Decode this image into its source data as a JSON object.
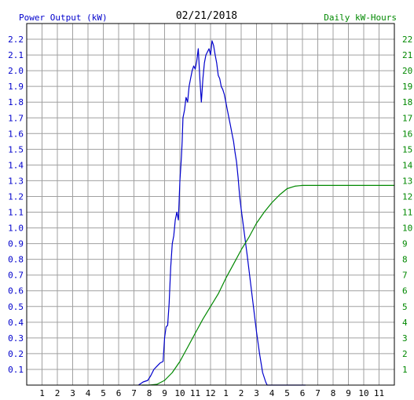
{
  "colors": {
    "power": "#0000cc",
    "energy": "#008800",
    "grid": "#a0a0a0",
    "axis_text": "#000000"
  },
  "chart_data": {
    "type": "line",
    "title": "02/21/2018",
    "left_label": "Power Output (kW)",
    "right_label": "Daily kW-Hours",
    "x_tick_labels": [
      "1",
      "2",
      "3",
      "4",
      "5",
      "6",
      "7",
      "8",
      "9",
      "10",
      "11",
      "12",
      "1",
      "2",
      "3",
      "4",
      "5",
      "6",
      "7",
      "8",
      "9",
      "10",
      "11"
    ],
    "xlim": [
      0,
      24
    ],
    "y_left": {
      "lim": [
        0,
        2.3
      ],
      "ticks": [
        "0.1",
        "0.2",
        "0.3",
        "0.4",
        "0.5",
        "0.6",
        "0.7",
        "0.8",
        "0.9",
        "1.0",
        "1.1",
        "1.2",
        "1.3",
        "1.4",
        "1.5",
        "1.6",
        "1.7",
        "1.8",
        "1.9",
        "2.0",
        "2.1",
        "2.2"
      ]
    },
    "y_right": {
      "lim": [
        0,
        23
      ],
      "ticks": [
        "1",
        "2",
        "3",
        "4",
        "5",
        "6",
        "7",
        "8",
        "9",
        "10",
        "11",
        "12",
        "13",
        "14",
        "15",
        "16",
        "17",
        "18",
        "19",
        "20",
        "21",
        "22"
      ]
    },
    "grid": true,
    "series": [
      {
        "name": "Power Output (kW)",
        "axis": "left",
        "color": "#0000cc",
        "x": [
          7.3,
          7.6,
          7.9,
          8.1,
          8.3,
          8.5,
          8.7,
          8.9,
          9.0,
          9.1,
          9.2,
          9.3,
          9.4,
          9.5,
          9.6,
          9.7,
          9.8,
          9.9,
          10.0,
          10.1,
          10.15,
          10.2,
          10.3,
          10.4,
          10.5,
          10.6,
          10.7,
          10.8,
          10.9,
          11.0,
          11.1,
          11.2,
          11.3,
          11.4,
          11.5,
          11.6,
          11.7,
          11.8,
          11.9,
          12.0,
          12.1,
          12.2,
          12.3,
          12.4,
          12.5,
          12.6,
          12.7,
          12.8,
          12.9,
          13.0,
          13.1,
          13.2,
          13.3,
          13.4,
          13.5,
          13.6,
          13.7,
          13.8,
          13.9,
          14.0,
          14.2,
          14.4,
          14.6,
          14.8,
          15.0,
          15.2,
          15.4,
          15.6,
          15.7,
          15.8,
          16.0,
          16.2,
          16.4,
          16.6,
          16.8,
          17.0,
          17.2,
          17.4,
          17.6,
          17.8,
          18.0,
          18.1,
          18.2
        ],
        "y": [
          0.0,
          0.02,
          0.03,
          0.06,
          0.1,
          0.12,
          0.14,
          0.15,
          0.3,
          0.37,
          0.38,
          0.52,
          0.75,
          0.9,
          0.95,
          1.05,
          1.1,
          1.05,
          1.3,
          1.45,
          1.55,
          1.7,
          1.75,
          1.83,
          1.8,
          1.9,
          1.95,
          2.0,
          2.03,
          2.01,
          2.06,
          2.14,
          1.95,
          1.8,
          1.95,
          2.05,
          2.1,
          2.12,
          2.14,
          2.1,
          2.19,
          2.16,
          2.1,
          2.05,
          1.97,
          1.95,
          1.9,
          1.88,
          1.85,
          1.8,
          1.75,
          1.7,
          1.65,
          1.6,
          1.55,
          1.48,
          1.42,
          1.32,
          1.2,
          1.12,
          0.97,
          0.82,
          0.66,
          0.5,
          0.34,
          0.2,
          0.08,
          0.02,
          0.0,
          0.0,
          0.0,
          0.0,
          0.0,
          0.0,
          0.0,
          0.0,
          0.0,
          0.0,
          0.0,
          0.0,
          0.0,
          0.0,
          0.0
        ]
      },
      {
        "name": "Daily kW-Hours",
        "axis": "right",
        "color": "#008800",
        "x": [
          7.5,
          8.0,
          8.5,
          9.0,
          9.5,
          10.0,
          10.5,
          11.0,
          11.5,
          12.0,
          12.5,
          13.0,
          13.5,
          14.0,
          14.5,
          15.0,
          15.5,
          16.0,
          16.5,
          17.0,
          17.5,
          18.0,
          18.5,
          19.0,
          20.0,
          21.0,
          22.0,
          23.0,
          24.0
        ],
        "y": [
          0.0,
          0.0,
          0.05,
          0.3,
          0.8,
          1.5,
          2.4,
          3.3,
          4.2,
          5.0,
          5.8,
          6.8,
          7.7,
          8.6,
          9.4,
          10.3,
          11.0,
          11.6,
          12.1,
          12.5,
          12.65,
          12.7,
          12.7,
          12.7,
          12.7,
          12.7,
          12.7,
          12.7,
          12.7
        ]
      }
    ]
  }
}
